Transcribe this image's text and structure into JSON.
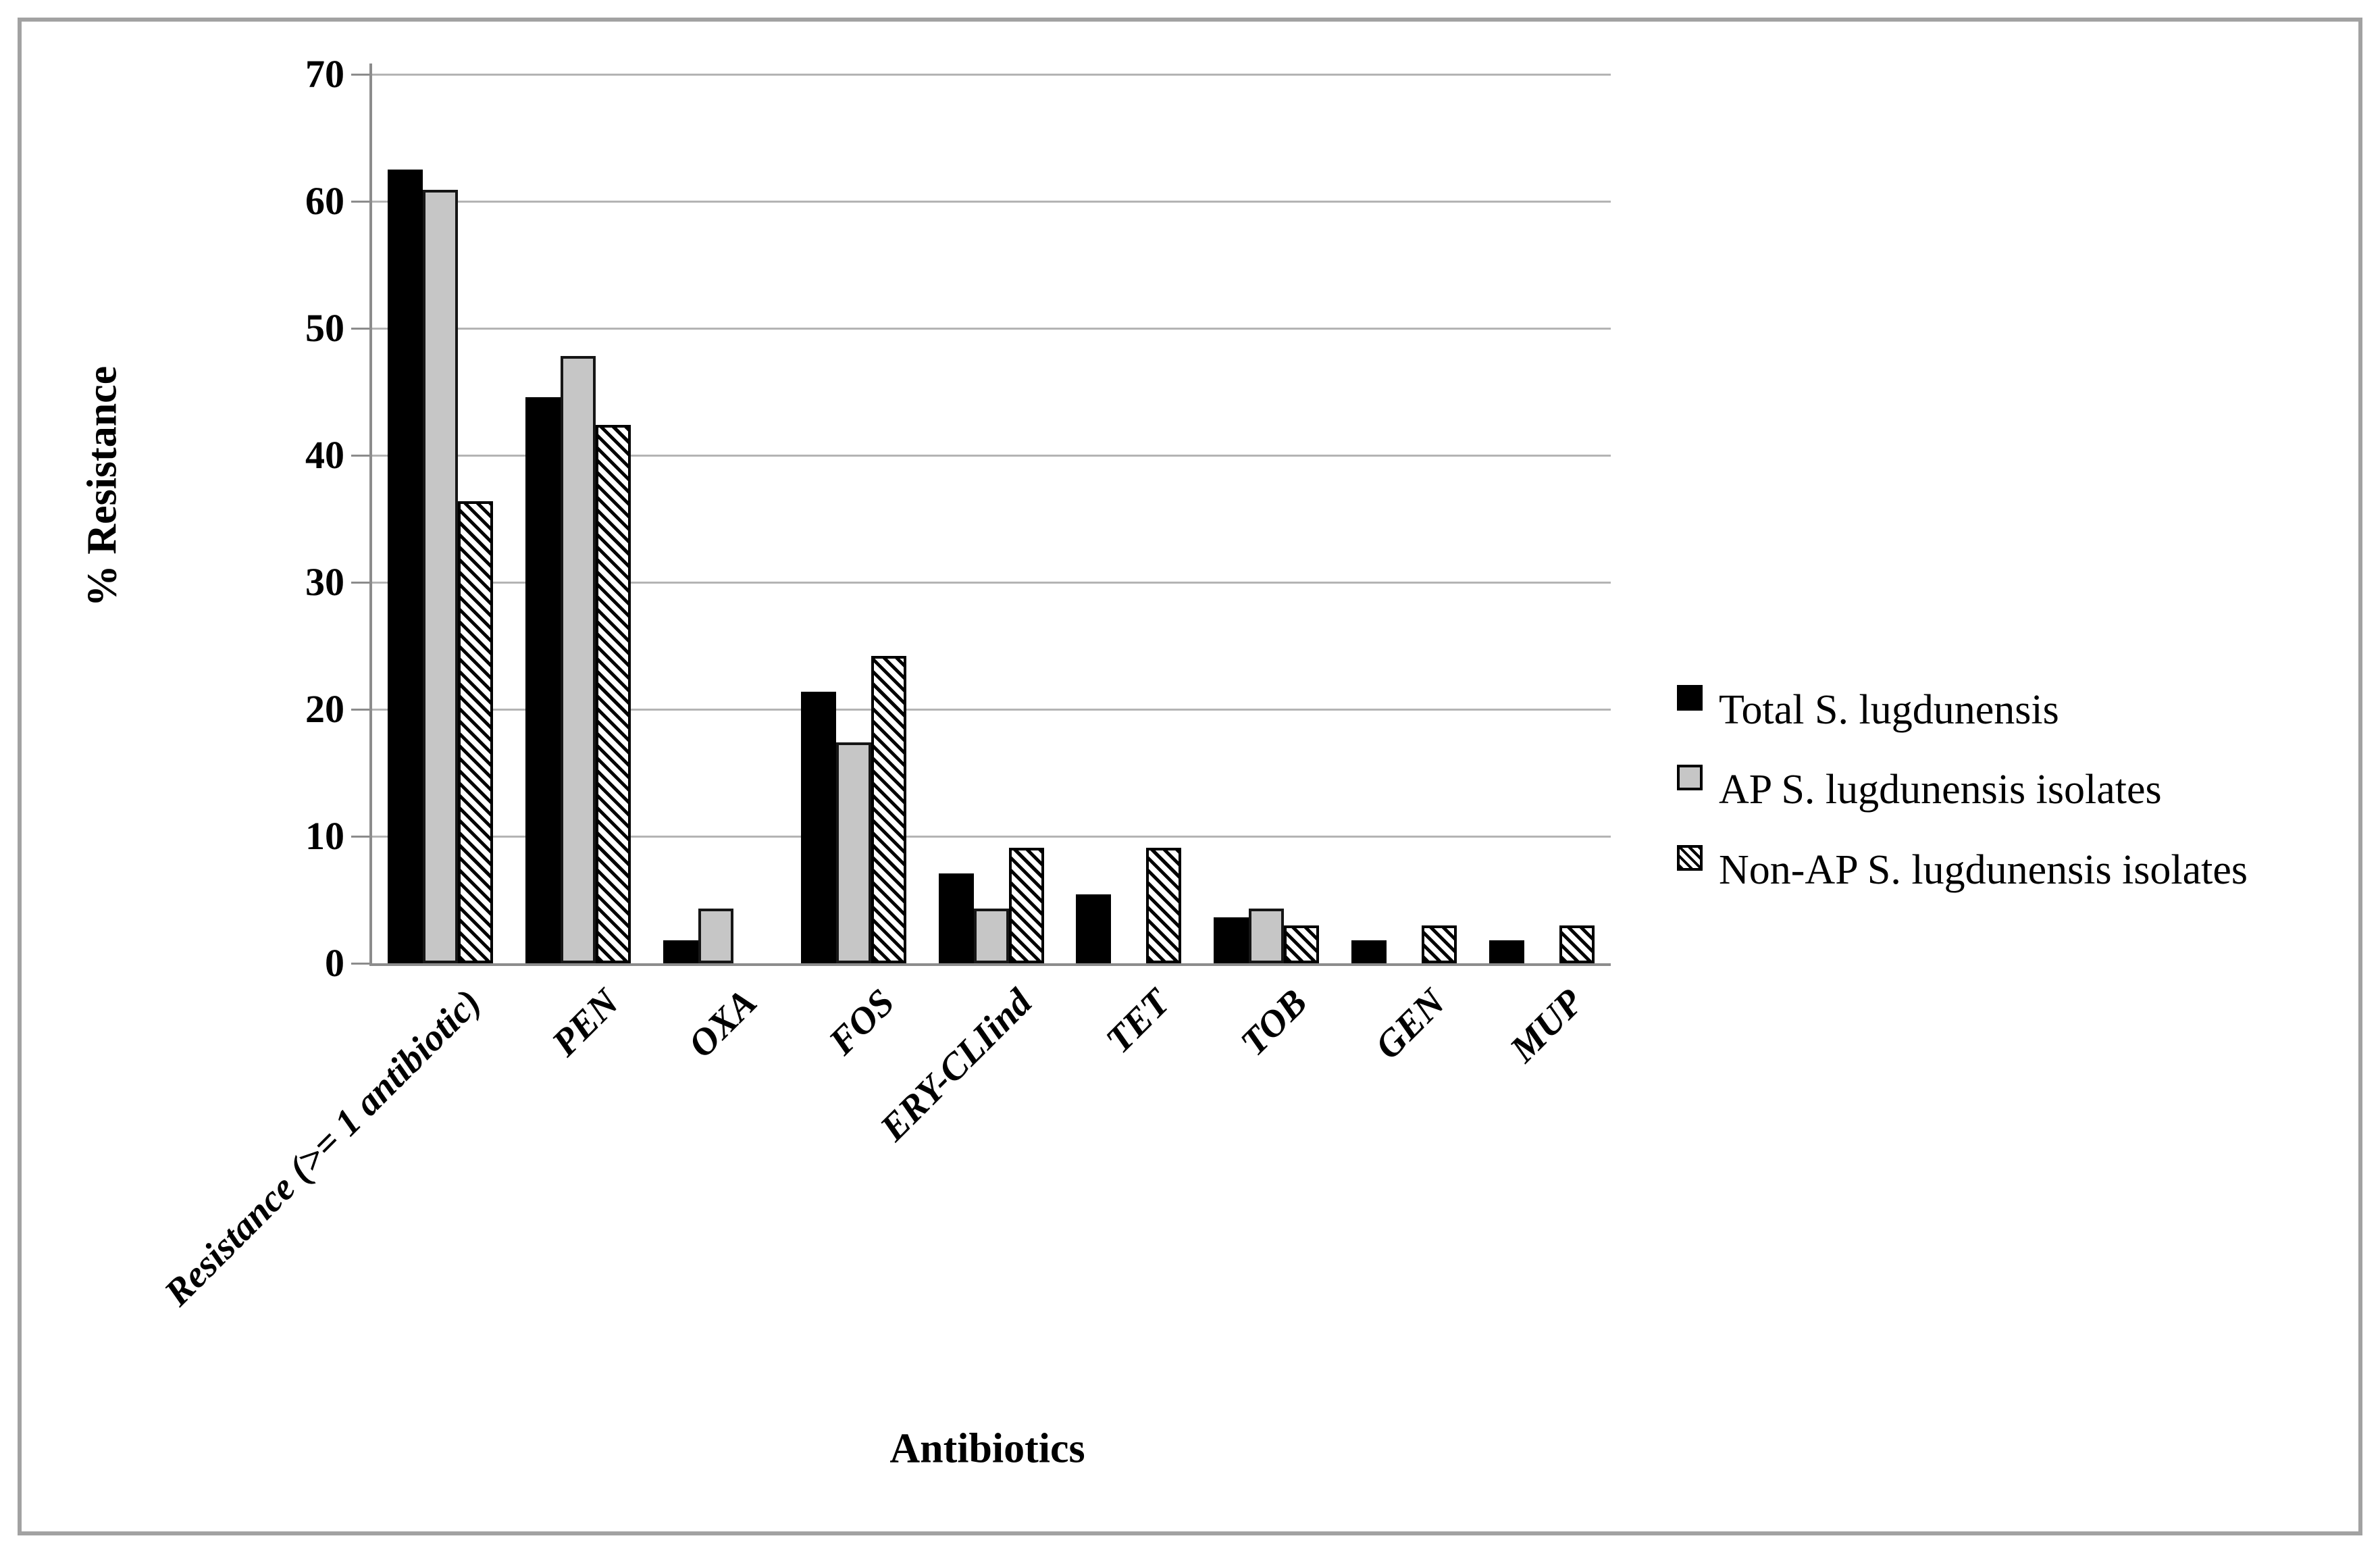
{
  "figure": {
    "background": "#ffffff",
    "border_color": "#a2a2a2"
  },
  "colors": {
    "gridline": "#b4b4b4",
    "axis": "#8c8c8c",
    "bar_black": "#000000",
    "bar_gray": "#c6c6c6",
    "bar_border": "#000000",
    "text": "#000000"
  },
  "chart_data": {
    "type": "bar",
    "title": "",
    "xlabel": "Antibiotics",
    "ylabel": "% Resistance",
    "ylim": [
      0,
      70
    ],
    "yticks": [
      0,
      10,
      20,
      30,
      40,
      50,
      60,
      70
    ],
    "grid": true,
    "legend_position": "right",
    "categories": [
      "Resistance (>= 1 antibiotic)",
      "PEN",
      "OXA",
      "FOS",
      "ERY-CLIind",
      "TET",
      "TOB",
      "GEN",
      "MUP"
    ],
    "series": [
      {
        "name": "Total S. lugdunensis",
        "style": "solid-black",
        "color": "#000000",
        "values": [
          62.5,
          44.6,
          1.8,
          21.4,
          7.1,
          5.4,
          3.6,
          1.8,
          1.8
        ]
      },
      {
        "name": "AP S. lugdunensis isolates",
        "style": "solid-gray",
        "color": "#c6c6c6",
        "values": [
          60.9,
          47.8,
          4.3,
          17.4,
          4.3,
          0,
          4.3,
          0,
          0
        ]
      },
      {
        "name": "Non-AP S. lugdunensis isolates",
        "style": "diagonal-hatch",
        "color": "#000000",
        "values": [
          36.4,
          42.4,
          0,
          24.2,
          9.1,
          9.1,
          3.0,
          3.0,
          3.0
        ]
      }
    ]
  }
}
